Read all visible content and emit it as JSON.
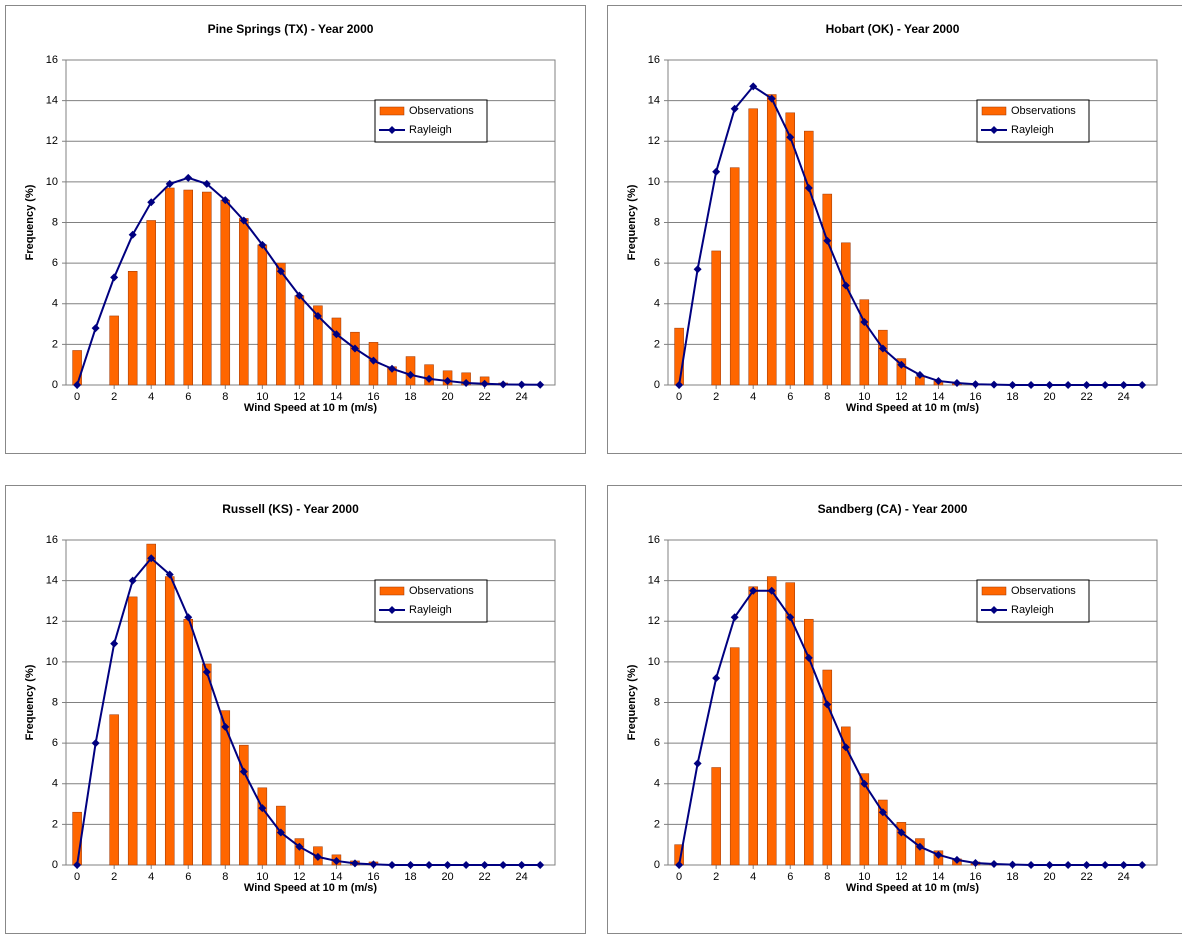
{
  "chart_data": [
    {
      "type": "bar",
      "title": "Pine Springs (TX) - Year 2000",
      "x_label": "Wind Speed at 10 m (m/s)",
      "y_label": "Frequency (%)",
      "x": [
        0,
        1,
        2,
        3,
        4,
        5,
        6,
        7,
        8,
        9,
        10,
        11,
        12,
        13,
        14,
        15,
        16,
        17,
        18,
        19,
        20,
        21,
        22,
        23,
        24,
        25
      ],
      "xlim": [
        -0.6,
        25.8
      ],
      "xticks": [
        0,
        2,
        4,
        6,
        8,
        10,
        12,
        14,
        16,
        18,
        20,
        22,
        24
      ],
      "ylim": [
        0,
        16
      ],
      "yticks": [
        0,
        2,
        4,
        6,
        8,
        10,
        12,
        14,
        16
      ],
      "grid": true,
      "legend": "top-right",
      "series": [
        {
          "name": "Observations",
          "type": "bar",
          "color": "#ff6600",
          "values": [
            1.7,
            0,
            3.4,
            5.6,
            8.1,
            9.7,
            9.6,
            9.5,
            9.1,
            8.2,
            6.9,
            6.0,
            4.4,
            3.9,
            3.3,
            2.6,
            2.1,
            0.9,
            1.4,
            1.0,
            0.7,
            0.6,
            0.4,
            0.1,
            0.05,
            0
          ]
        },
        {
          "name": "Rayleigh",
          "type": "line",
          "color": "#000080",
          "values": [
            0,
            2.8,
            5.3,
            7.4,
            9.0,
            9.9,
            10.2,
            9.9,
            9.1,
            8.1,
            6.9,
            5.6,
            4.4,
            3.4,
            2.5,
            1.8,
            1.2,
            0.8,
            0.5,
            0.3,
            0.2,
            0.1,
            0.06,
            0.03,
            0.02,
            0.01
          ]
        }
      ]
    },
    {
      "type": "bar",
      "title": "Hobart (OK) - Year 2000",
      "x_label": "Wind Speed at 10 m (m/s)",
      "y_label": "Frequency (%)",
      "x": [
        0,
        1,
        2,
        3,
        4,
        5,
        6,
        7,
        8,
        9,
        10,
        11,
        12,
        13,
        14,
        15,
        16,
        17,
        18,
        19,
        20,
        21,
        22,
        23,
        24,
        25
      ],
      "xlim": [
        -0.6,
        25.8
      ],
      "xticks": [
        0,
        2,
        4,
        6,
        8,
        10,
        12,
        14,
        16,
        18,
        20,
        22,
        24
      ],
      "ylim": [
        0,
        16
      ],
      "yticks": [
        0,
        2,
        4,
        6,
        8,
        10,
        12,
        14,
        16
      ],
      "grid": true,
      "legend": "top-right",
      "series": [
        {
          "name": "Observations",
          "type": "bar",
          "color": "#ff6600",
          "values": [
            2.8,
            0,
            6.6,
            10.7,
            13.6,
            14.3,
            13.4,
            12.5,
            9.4,
            7.0,
            4.2,
            2.7,
            1.3,
            0.4,
            0.2,
            0.1,
            0.05,
            0,
            0,
            0,
            0,
            0,
            0,
            0,
            0,
            0
          ]
        },
        {
          "name": "Rayleigh",
          "type": "line",
          "color": "#000080",
          "values": [
            0,
            5.7,
            10.5,
            13.6,
            14.7,
            14.1,
            12.2,
            9.7,
            7.1,
            4.9,
            3.1,
            1.8,
            1.0,
            0.5,
            0.2,
            0.1,
            0.04,
            0.02,
            0,
            0,
            0,
            0,
            0,
            0,
            0,
            0
          ]
        }
      ]
    },
    {
      "type": "bar",
      "title": "Russell (KS) - Year 2000",
      "x_label": "Wind Speed at 10 m (m/s)",
      "y_label": "Frequency (%)",
      "x": [
        0,
        1,
        2,
        3,
        4,
        5,
        6,
        7,
        8,
        9,
        10,
        11,
        12,
        13,
        14,
        15,
        16,
        17,
        18,
        19,
        20,
        21,
        22,
        23,
        24,
        25
      ],
      "xlim": [
        -0.6,
        25.8
      ],
      "xticks": [
        0,
        2,
        4,
        6,
        8,
        10,
        12,
        14,
        16,
        18,
        20,
        22,
        24
      ],
      "ylim": [
        0,
        16
      ],
      "yticks": [
        0,
        2,
        4,
        6,
        8,
        10,
        12,
        14,
        16
      ],
      "grid": true,
      "legend": "top-right",
      "series": [
        {
          "name": "Observations",
          "type": "bar",
          "color": "#ff6600",
          "values": [
            2.6,
            0,
            7.4,
            13.2,
            15.8,
            14.2,
            12.1,
            9.9,
            7.6,
            5.9,
            3.8,
            2.9,
            1.3,
            0.9,
            0.5,
            0.2,
            0.15,
            0,
            0,
            0,
            0,
            0,
            0,
            0,
            0,
            0
          ]
        },
        {
          "name": "Rayleigh",
          "type": "line",
          "color": "#000080",
          "values": [
            0,
            6.0,
            10.9,
            14.0,
            15.1,
            14.3,
            12.2,
            9.5,
            6.8,
            4.6,
            2.8,
            1.6,
            0.9,
            0.4,
            0.2,
            0.08,
            0.03,
            0,
            0,
            0,
            0,
            0,
            0,
            0,
            0,
            0
          ]
        }
      ]
    },
    {
      "type": "bar",
      "title": "Sandberg (CA) - Year 2000",
      "x_label": "Wind Speed at 10 m (m/s)",
      "y_label": "Frequency (%)",
      "x": [
        0,
        1,
        2,
        3,
        4,
        5,
        6,
        7,
        8,
        9,
        10,
        11,
        12,
        13,
        14,
        15,
        16,
        17,
        18,
        19,
        20,
        21,
        22,
        23,
        24,
        25
      ],
      "xlim": [
        -0.6,
        25.8
      ],
      "xticks": [
        0,
        2,
        4,
        6,
        8,
        10,
        12,
        14,
        16,
        18,
        20,
        22,
        24
      ],
      "ylim": [
        0,
        16
      ],
      "yticks": [
        0,
        2,
        4,
        6,
        8,
        10,
        12,
        14,
        16
      ],
      "grid": true,
      "legend": "top-right",
      "series": [
        {
          "name": "Observations",
          "type": "bar",
          "color": "#ff6600",
          "values": [
            1.0,
            0,
            4.8,
            10.7,
            13.7,
            14.2,
            13.9,
            12.1,
            9.6,
            6.8,
            4.5,
            3.2,
            2.1,
            1.3,
            0.7,
            0.3,
            0.15,
            0.05,
            0,
            0,
            0,
            0,
            0,
            0,
            0,
            0
          ]
        },
        {
          "name": "Rayleigh",
          "type": "line",
          "color": "#000080",
          "values": [
            0,
            5.0,
            9.2,
            12.2,
            13.5,
            13.5,
            12.2,
            10.2,
            7.9,
            5.8,
            4.0,
            2.6,
            1.6,
            0.9,
            0.5,
            0.25,
            0.1,
            0.05,
            0.02,
            0,
            0,
            0,
            0,
            0,
            0,
            0
          ]
        }
      ]
    }
  ]
}
